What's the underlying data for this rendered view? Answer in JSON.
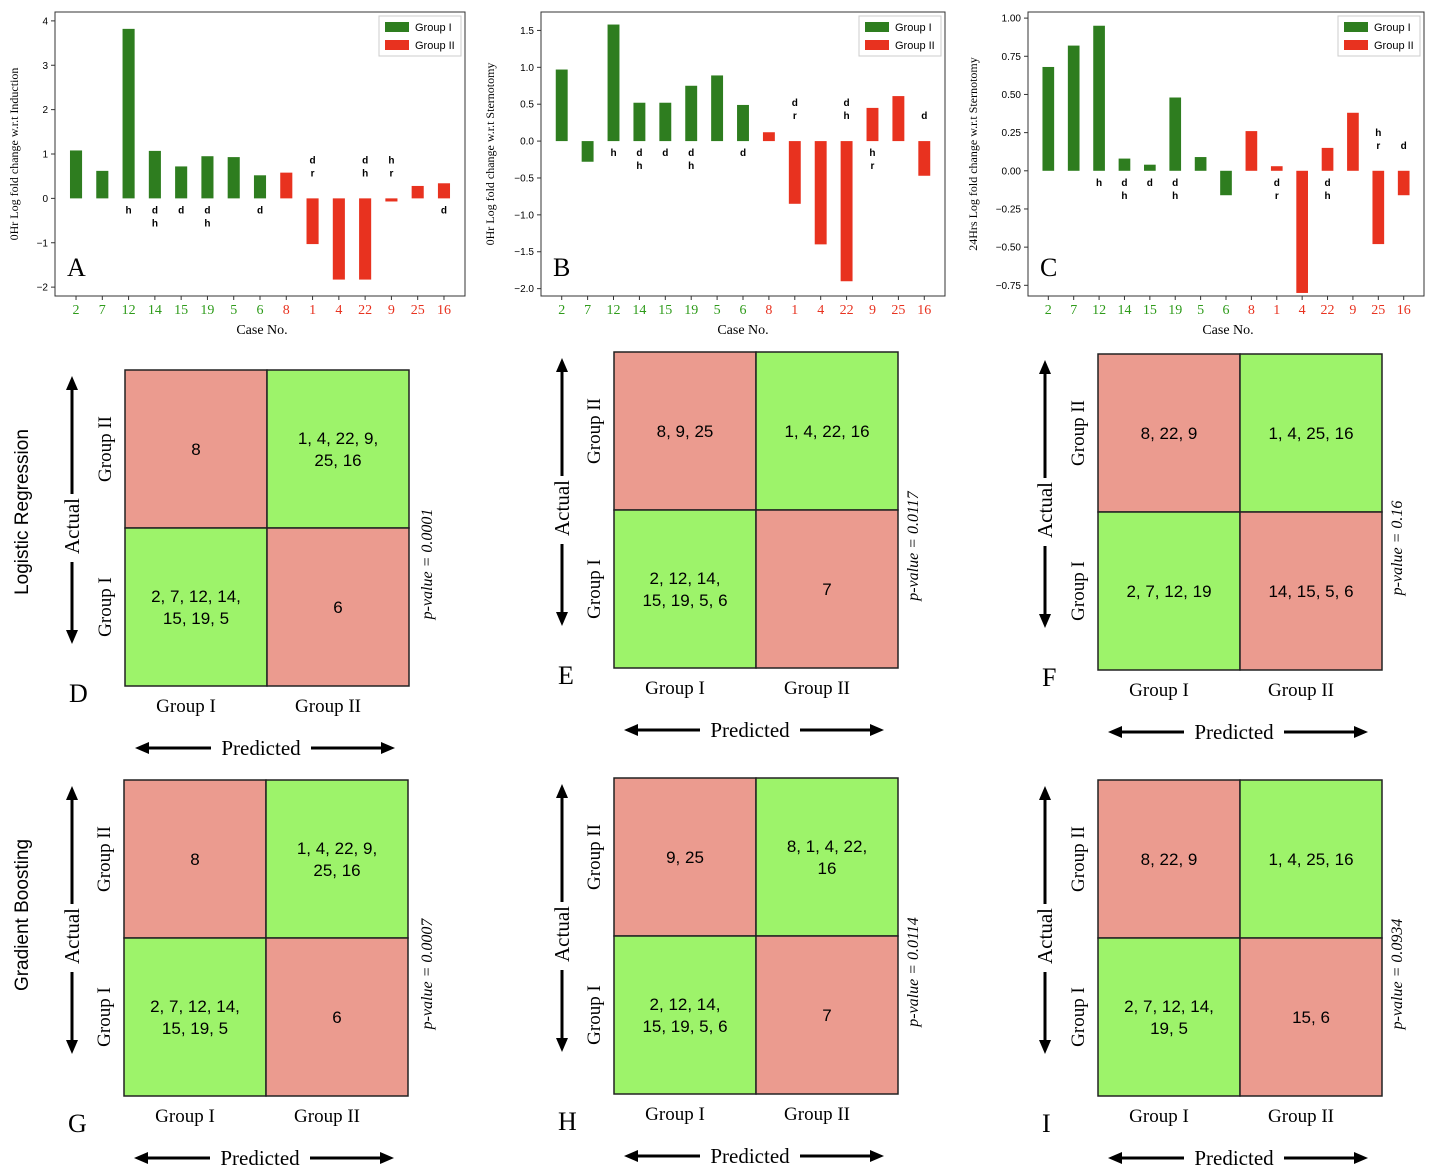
{
  "colors": {
    "group1_bar": "#2e7d1f",
    "group2_bar": "#e8321f",
    "group1_tick": "#2e9b1a",
    "group2_tick": "#e8321f",
    "cm_green": "#9df36a",
    "cm_red": "#eb9b8f"
  },
  "row_labels": {
    "lr": "Logistic Regression",
    "gb": "Gradient Boosting"
  },
  "chart_data": [
    {
      "type": "bar",
      "panel": "A",
      "xlabel": "Case No.",
      "ylabel": "0Hr Log fold change w.r.t Induction",
      "ylim": [
        -2.2,
        4.2
      ],
      "yticks": [
        -2,
        -1,
        0,
        1,
        2,
        3,
        4
      ],
      "ytick_labels": [
        "−2",
        "−1",
        "0",
        "1",
        "2",
        "3",
        "4"
      ],
      "legend": [
        "Group I",
        "Group II"
      ],
      "legend_position": "top-right",
      "categories": [
        "2",
        "7",
        "12",
        "14",
        "15",
        "19",
        "5",
        "6",
        "8",
        "1",
        "4",
        "22",
        "9",
        "25",
        "16"
      ],
      "groups": [
        "I",
        "I",
        "I",
        "I",
        "I",
        "I",
        "I",
        "I",
        "II",
        "II",
        "II",
        "II",
        "II",
        "II",
        "II"
      ],
      "values": [
        1.08,
        0.62,
        3.82,
        1.07,
        0.72,
        0.95,
        0.93,
        0.52,
        0.58,
        -1.03,
        -1.83,
        -1.83,
        -0.07,
        0.28,
        0.34
      ],
      "annotations": [
        "",
        "",
        "h",
        "d\nh",
        "d",
        "d\nh",
        "",
        "d",
        "",
        "d\nr",
        "",
        "d\nh",
        "h\nr",
        "",
        "d"
      ]
    },
    {
      "type": "bar",
      "panel": "B",
      "xlabel": "Case No.",
      "ylabel": "0Hr Log fold change w.r.t Sternotomy",
      "ylim": [
        -2.1,
        1.75
      ],
      "yticks": [
        -2.0,
        -1.5,
        -1.0,
        -0.5,
        0.0,
        0.5,
        1.0,
        1.5
      ],
      "ytick_labels": [
        "−2.0",
        "−1.5",
        "−1.0",
        "−0.5",
        "0.0",
        "0.5",
        "1.0",
        "1.5"
      ],
      "legend": [
        "Group I",
        "Group II"
      ],
      "legend_position": "top-right",
      "categories": [
        "2",
        "7",
        "12",
        "14",
        "15",
        "19",
        "5",
        "6",
        "8",
        "1",
        "4",
        "22",
        "9",
        "25",
        "16"
      ],
      "groups": [
        "I",
        "I",
        "I",
        "I",
        "I",
        "I",
        "I",
        "I",
        "II",
        "II",
        "II",
        "II",
        "II",
        "II",
        "II"
      ],
      "values": [
        0.97,
        -0.28,
        1.58,
        0.52,
        0.52,
        0.75,
        0.89,
        0.49,
        0.12,
        -0.85,
        -1.4,
        -1.9,
        0.45,
        0.61,
        -0.47
      ],
      "annotations": [
        "",
        "",
        "h",
        "d\nh",
        "d",
        "d\nh",
        "",
        "d",
        "",
        "d\nr",
        "",
        "d\nh",
        "h\nr",
        "",
        "d"
      ]
    },
    {
      "type": "bar",
      "panel": "C",
      "xlabel": "Case No.",
      "ylabel": "24Hrs Log fold change w.r.t Sternotomy",
      "ylim": [
        -0.82,
        1.04
      ],
      "yticks": [
        -0.75,
        -0.5,
        -0.25,
        0.0,
        0.25,
        0.5,
        0.75,
        1.0
      ],
      "ytick_labels": [
        "−0.75",
        "−0.50",
        "−0.25",
        "0.00",
        "0.25",
        "0.50",
        "0.75",
        "1.00"
      ],
      "legend": [
        "Group I",
        "Group II"
      ],
      "legend_position": "top-right",
      "categories": [
        "2",
        "7",
        "12",
        "14",
        "15",
        "19",
        "5",
        "6",
        "8",
        "1",
        "4",
        "22",
        "9",
        "25",
        "16"
      ],
      "groups": [
        "I",
        "I",
        "I",
        "I",
        "I",
        "I",
        "I",
        "I",
        "II",
        "II",
        "II",
        "II",
        "II",
        "II",
        "II"
      ],
      "values": [
        0.68,
        0.82,
        0.95,
        0.08,
        0.04,
        0.48,
        0.09,
        -0.16,
        0.26,
        0.03,
        -0.8,
        0.15,
        0.38,
        -0.48,
        -0.16
      ],
      "annotations": [
        "",
        "",
        "h",
        "d\nh",
        "d",
        "d\nh",
        "",
        "",
        "",
        "d\nr",
        "",
        "d\nh",
        "",
        "h\nr",
        "d"
      ]
    },
    {
      "type": "table",
      "panel": "D",
      "model": "Logistic Regression",
      "xlabel": "Predicted",
      "ylabel": "Actual",
      "col_labels": [
        "Group I",
        "Group II"
      ],
      "row_labels": [
        "Group II",
        "Group I"
      ],
      "cells": [
        [
          "8",
          "1, 4, 22, 9,\n25, 16"
        ],
        [
          "2, 7, 12, 14,\n15, 19, 5",
          "6"
        ]
      ],
      "p_value": "p-value = 0.0001"
    },
    {
      "type": "table",
      "panel": "E",
      "model": "Logistic Regression",
      "xlabel": "Predicted",
      "ylabel": "Actual",
      "col_labels": [
        "Group I",
        "Group II"
      ],
      "row_labels": [
        "Group II",
        "Group I"
      ],
      "cells": [
        [
          "8, 9, 25",
          "1, 4, 22, 16"
        ],
        [
          "2, 12, 14,\n15, 19, 5, 6",
          "7"
        ]
      ],
      "p_value": "p-value = 0.0117"
    },
    {
      "type": "table",
      "panel": "F",
      "model": "Logistic Regression",
      "xlabel": "Predicted",
      "ylabel": "Actual",
      "col_labels": [
        "Group I",
        "Group II"
      ],
      "row_labels": [
        "Group II",
        "Group I"
      ],
      "cells": [
        [
          "8, 22, 9",
          "1, 4, 25, 16"
        ],
        [
          "2, 7, 12, 19",
          "14, 15, 5, 6"
        ]
      ],
      "p_value": "p-value = 0.16"
    },
    {
      "type": "table",
      "panel": "G",
      "model": "Gradient Boosting",
      "xlabel": "Predicted",
      "ylabel": "Actual",
      "col_labels": [
        "Group I",
        "Group II"
      ],
      "row_labels": [
        "Group II",
        "Group I"
      ],
      "cells": [
        [
          "8",
          "1, 4, 22, 9,\n25, 16"
        ],
        [
          "2, 7, 12, 14,\n15, 19, 5",
          "6"
        ]
      ],
      "p_value": "p-value = 0.0007"
    },
    {
      "type": "table",
      "panel": "H",
      "model": "Gradient Boosting",
      "xlabel": "Predicted",
      "ylabel": "Actual",
      "col_labels": [
        "Group I",
        "Group II"
      ],
      "row_labels": [
        "Group II",
        "Group I"
      ],
      "cells": [
        [
          "9, 25",
          "8, 1, 4, 22,\n16"
        ],
        [
          "2, 12, 14,\n15, 19, 5, 6",
          "7"
        ]
      ],
      "p_value": "p-value = 0.0114"
    },
    {
      "type": "table",
      "panel": "I",
      "model": "Gradient Boosting",
      "xlabel": "Predicted",
      "ylabel": "Actual",
      "col_labels": [
        "Group I",
        "Group II"
      ],
      "row_labels": [
        "Group II",
        "Group I"
      ],
      "cells": [
        [
          "8, 22, 9",
          "1, 4, 25, 16"
        ],
        [
          "2, 7, 12, 14,\n19, 5",
          "15, 6"
        ]
      ],
      "p_value": "p-value = 0.0934"
    }
  ]
}
